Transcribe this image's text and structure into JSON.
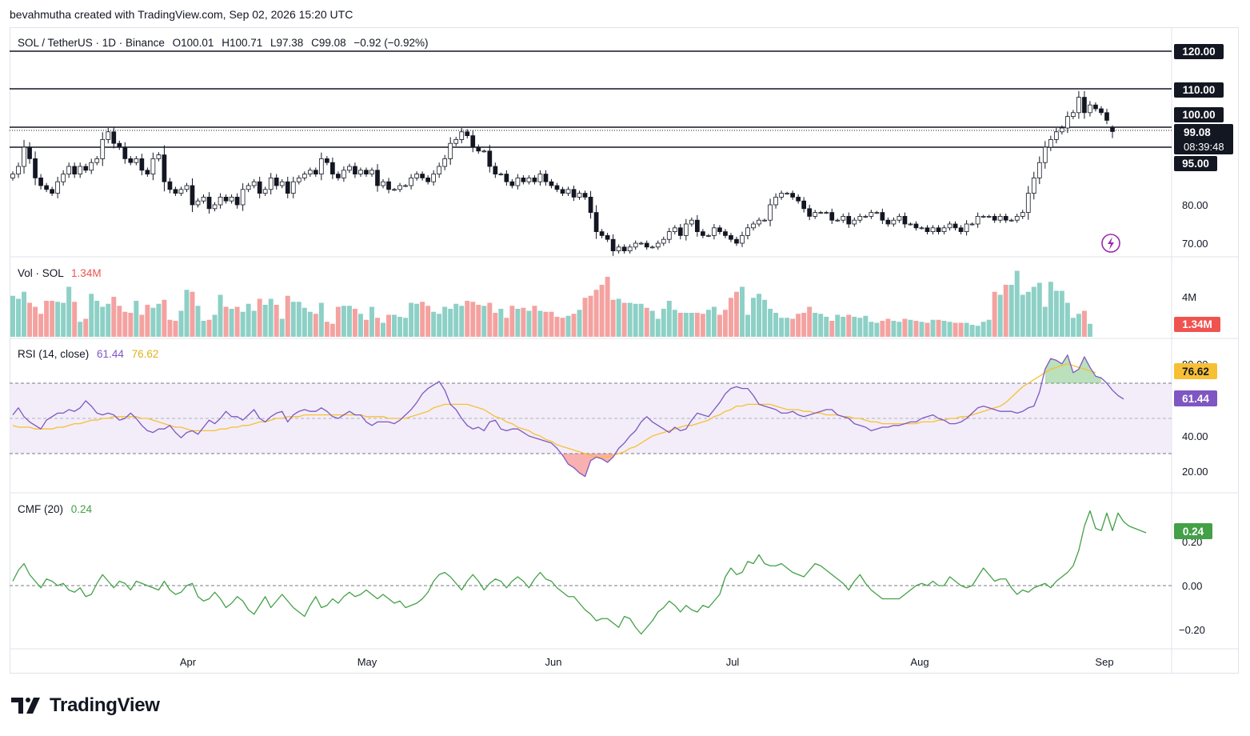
{
  "caption": "bevahmutha created with TradingView.com, Sep 02, 2026 15:20 UTC",
  "brand": "TradingView",
  "colors": {
    "up": "#26a69a",
    "down": "#ef5350",
    "vol_up": "#8dd0c6",
    "vol_down": "#f4a2a0",
    "rsi": "#7e57c2",
    "rsi_ma": "#f7c034",
    "cmf": "#43a047",
    "line": "#131722",
    "grid": "#e0e3eb",
    "rsi_band": "#ede7f6"
  },
  "price_pane": {
    "symbol_line": "SOL / TetherUS · 1D · Binance",
    "o_label": "O",
    "o": "100.01",
    "h_label": "H",
    "h": "100.71",
    "l_label": "L",
    "l": "97.38",
    "c_label": "C",
    "c": "99.08",
    "change": "−0.92 (−0.92%)",
    "countdown": "08:39:48",
    "axis_ticks": [
      "120.00",
      "110.00",
      "100.00",
      "95.00",
      "80.00",
      "70.00"
    ],
    "last_price": "99.08"
  },
  "volume_pane": {
    "title": "Vol · SOL",
    "value": "1.34M",
    "axis_tick": "4M",
    "badge": "1.34M"
  },
  "rsi_pane": {
    "title": "RSI (14, close)",
    "rsi_value": "61.44",
    "ma_value": "76.62",
    "axis_ticks": [
      "80.00",
      "40.00",
      "20.00"
    ],
    "badge_ma": "76.62",
    "badge_rsi": "61.44"
  },
  "cmf_pane": {
    "title": "CMF (20)",
    "value": "0.24",
    "axis_ticks": [
      "0.20",
      "0.00",
      "−0.20"
    ],
    "badge": "0.24"
  },
  "x_axis": [
    "Apr",
    "May",
    "Jun",
    "Jul",
    "Aug",
    "Sep"
  ],
  "chart_data": {
    "type": "candlestick",
    "title": "SOL / TetherUS · 1D · Binance",
    "x_range": [
      "2026-03-01",
      "2026-09-02"
    ],
    "price_ylim": [
      66,
      124
    ],
    "horizontal_levels": [
      120,
      110,
      100,
      95
    ],
    "last_ohlc": {
      "open": 100.01,
      "high": 100.71,
      "low": 97.38,
      "close": 99.08,
      "change": -0.92,
      "change_pct": -0.92
    },
    "closes": [
      88,
      90,
      95,
      92,
      87,
      85,
      84,
      83,
      86,
      88,
      90,
      88,
      90,
      89,
      91,
      92,
      97,
      99,
      96,
      95,
      92,
      91,
      92,
      89,
      88,
      92,
      93,
      86,
      84,
      83,
      84,
      85,
      80,
      81,
      82,
      79,
      80,
      82,
      81,
      82,
      80,
      84,
      85,
      86,
      83,
      84,
      87,
      85,
      86,
      83,
      86,
      87,
      88,
      89,
      88,
      92,
      91,
      88,
      87,
      89,
      90,
      88,
      89,
      88,
      89,
      85,
      86,
      84,
      84,
      85,
      85,
      87,
      88,
      87,
      86,
      88,
      90,
      92,
      96,
      97,
      99,
      98,
      95,
      94,
      94,
      90,
      88,
      88,
      86,
      85,
      87,
      86,
      87,
      86,
      88,
      86,
      85,
      84,
      83,
      84,
      82,
      83,
      82,
      78,
      73,
      72,
      71,
      68,
      69,
      68,
      69,
      70,
      70,
      69,
      69,
      70,
      71,
      73,
      74,
      72,
      75,
      76,
      73,
      72,
      72,
      74,
      73,
      72,
      71,
      70,
      72,
      74,
      75,
      76,
      76,
      80,
      82,
      83,
      83,
      82,
      81,
      79,
      77,
      78,
      78,
      78,
      76,
      76,
      77,
      75,
      76,
      77,
      77,
      78,
      78,
      76,
      75,
      76,
      77,
      75,
      75,
      74,
      74,
      73,
      74,
      73,
      74,
      75,
      74,
      73,
      75,
      75,
      77,
      77,
      77,
      76,
      77,
      76,
      76,
      77,
      78,
      83,
      87,
      91,
      95,
      97,
      99,
      100,
      103,
      104,
      108,
      104,
      106,
      105,
      104,
      102,
      99
    ],
    "volume": {
      "unit": "SOL",
      "last": 1.34,
      "values_m": [
        4.1,
        3.8,
        4.5,
        3.4,
        3.0,
        2.3,
        3.6,
        3.6,
        3.5,
        3.4,
        5.0,
        3.5,
        1.5,
        1.8,
        4.3,
        3.6,
        3.0,
        3.3,
        4.0,
        3.1,
        2.5,
        2.4,
        3.6,
        2.2,
        3.2,
        2.9,
        3.3,
        3.7,
        1.7,
        1.6,
        2.6,
        4.7,
        4.5,
        3.1,
        1.6,
        1.7,
        2.2,
        4.2,
        3.0,
        2.8,
        3.0,
        2.5,
        3.3,
        2.6,
        3.8,
        3.2,
        3.8,
        3.2,
        1.8,
        4.1,
        3.5,
        3.5,
        2.9,
        2.5,
        2.3,
        3.4,
        1.5,
        1.3,
        3.0,
        3.1,
        3.1,
        2.8,
        2.3,
        1.7,
        3.0,
        1.9,
        1.4,
        2.2,
        2.2,
        2.0,
        1.9,
        3.4,
        3.3,
        3.5,
        3.1,
        2.5,
        2.3,
        3.0,
        2.8,
        3.3,
        3.1,
        3.6,
        3.5,
        3.2,
        3.1,
        3.4,
        2.4,
        2.8,
        1.9,
        3.1,
        2.8,
        2.9,
        2.6,
        3.1,
        2.6,
        2.5,
        2.5,
        2.0,
        1.9,
        2.1,
        2.3,
        2.7,
        3.9,
        4.1,
        4.7,
        5.2,
        6.0,
        3.7,
        3.8,
        3.4,
        3.4,
        3.3,
        3.3,
        2.9,
        2.6,
        1.8,
        2.8,
        3.6,
        2.7,
        2.4,
        2.4,
        2.4,
        2.4,
        2.3,
        2.7,
        3.0,
        2.2,
        2.7,
        3.9,
        4.5,
        5.0,
        2.2,
        3.9,
        4.3,
        3.7,
        2.8,
        2.4,
        1.9,
        1.9,
        1.8,
        2.3,
        2.4,
        3.0,
        2.4,
        2.3,
        2.0,
        1.6,
        2.2,
        2.0,
        2.2,
        2.0,
        1.9,
        2.1,
        1.5,
        1.4,
        1.6,
        1.8,
        1.6,
        1.5,
        1.8,
        1.7,
        1.6,
        1.5,
        1.4,
        1.7,
        1.7,
        1.6,
        1.5,
        1.4,
        1.4,
        1.4,
        1.2,
        1.1,
        1.5,
        1.7,
        4.5,
        4.2,
        5.2,
        5.2,
        6.6,
        4.2,
        4.5,
        5.0,
        5.4,
        3.0,
        5.5,
        4.6,
        4.6,
        3.4,
        1.9,
        2.3,
        2.6,
        1.3
      ]
    },
    "rsi": {
      "period": 14,
      "last": 61.44,
      "ma_last": 76.62,
      "ylim": [
        10,
        90
      ],
      "bands": [
        30,
        50,
        70
      ],
      "values": [
        52,
        56,
        51,
        48,
        46,
        44,
        49,
        51,
        53,
        53,
        55,
        54,
        56,
        60,
        57,
        53,
        52,
        53,
        52,
        49,
        50,
        53,
        50,
        46,
        43,
        42,
        44,
        44,
        46,
        42,
        39,
        42,
        43,
        41,
        45,
        49,
        47,
        50,
        54,
        51,
        51,
        49,
        52,
        55,
        50,
        48,
        51,
        53,
        54,
        48,
        52,
        54,
        55,
        54,
        54,
        56,
        54,
        51,
        50,
        52,
        54,
        52,
        52,
        48,
        46,
        48,
        48,
        48,
        47,
        49,
        52,
        55,
        59,
        64,
        67,
        69,
        71,
        66,
        58,
        55,
        50,
        46,
        44,
        45,
        43,
        48,
        49,
        44,
        43,
        44,
        44,
        42,
        40,
        39,
        38,
        37,
        36,
        33,
        29,
        24,
        22,
        19,
        17,
        26,
        28,
        27,
        25,
        28,
        33,
        36,
        40,
        43,
        48,
        51,
        48,
        46,
        44,
        42,
        45,
        43,
        44,
        49,
        53,
        52,
        51,
        55,
        59,
        64,
        67,
        68,
        67,
        67,
        63,
        58,
        57,
        56,
        55,
        53,
        53,
        54,
        52,
        51,
        52,
        53,
        54,
        55,
        55,
        52,
        51,
        50,
        47,
        46,
        45,
        43,
        44,
        45,
        45,
        46,
        46,
        47,
        48,
        48,
        50,
        51,
        52,
        50,
        49,
        47,
        47,
        48,
        50,
        53,
        56,
        57,
        56,
        55,
        54,
        54,
        54,
        53,
        54,
        56,
        57,
        65,
        78,
        84,
        83,
        81,
        86,
        76,
        78,
        85,
        79,
        74,
        73,
        70,
        66,
        63,
        61
      ],
      "ma": [
        46,
        45,
        45,
        45,
        44,
        44,
        44,
        44,
        45,
        45,
        46,
        47,
        47,
        48,
        49,
        49,
        50,
        50,
        51,
        51,
        51,
        51,
        51,
        50,
        50,
        49,
        48,
        47,
        46,
        45,
        45,
        44,
        43,
        43,
        43,
        43,
        43,
        44,
        44,
        45,
        45,
        46,
        46,
        47,
        48,
        48,
        49,
        50,
        50,
        51,
        51,
        51,
        52,
        52,
        52,
        52,
        52,
        52,
        52,
        52,
        52,
        52,
        52,
        51,
        51,
        51,
        51,
        50,
        50,
        50,
        50,
        51,
        52,
        53,
        54,
        56,
        57,
        58,
        58,
        58,
        58,
        58,
        57,
        56,
        55,
        53,
        51,
        50,
        48,
        47,
        45,
        44,
        43,
        41,
        40,
        38,
        37,
        35,
        34,
        33,
        32,
        31,
        30,
        29,
        28,
        28,
        28,
        29,
        30,
        31,
        33,
        34,
        36,
        38,
        40,
        41,
        42,
        43,
        44,
        45,
        46,
        46,
        47,
        48,
        49,
        51,
        52,
        54,
        55,
        57,
        57,
        58,
        58,
        58,
        58,
        58,
        57,
        56,
        55,
        55,
        55,
        54,
        54,
        53,
        53,
        52,
        52,
        52,
        51,
        51,
        50,
        50,
        49,
        48,
        48,
        47,
        47,
        47,
        47,
        47,
        47,
        47,
        48,
        48,
        48,
        49,
        49,
        50,
        50,
        51,
        51,
        52,
        53,
        54,
        55,
        56,
        57,
        59,
        62,
        65,
        68,
        70,
        72,
        74,
        76,
        78,
        79,
        80,
        81,
        80,
        79,
        78,
        77,
        76
      ]
    },
    "cmf": {
      "period": 20,
      "last": 0.24,
      "ylim": [
        -0.27,
        0.37
      ],
      "values": [
        0.02,
        0.07,
        0.1,
        0.05,
        0.02,
        -0.01,
        0.03,
        0.02,
        0.0,
        0.01,
        -0.02,
        -0.03,
        -0.01,
        -0.05,
        -0.04,
        0.01,
        0.05,
        0.02,
        -0.01,
        0.02,
        0.01,
        -0.02,
        0.02,
        0.01,
        0.0,
        -0.01,
        -0.02,
        0.02,
        -0.02,
        -0.04,
        -0.03,
        0.0,
        0.01,
        -0.05,
        -0.07,
        -0.06,
        -0.03,
        -0.06,
        -0.1,
        -0.08,
        -0.05,
        -0.07,
        -0.11,
        -0.13,
        -0.09,
        -0.05,
        -0.1,
        -0.07,
        -0.04,
        -0.07,
        -0.1,
        -0.12,
        -0.14,
        -0.09,
        -0.05,
        -0.1,
        -0.09,
        -0.06,
        -0.08,
        -0.05,
        -0.03,
        -0.05,
        -0.04,
        -0.02,
        -0.04,
        -0.06,
        -0.04,
        -0.06,
        -0.08,
        -0.07,
        -0.1,
        -0.09,
        -0.08,
        -0.06,
        -0.03,
        0.02,
        0.05,
        0.06,
        0.04,
        0.01,
        -0.02,
        0.02,
        0.05,
        0.02,
        -0.02,
        0.01,
        0.03,
        0.02,
        -0.01,
        0.02,
        0.04,
        0.02,
        -0.01,
        0.03,
        0.06,
        0.03,
        0.02,
        -0.01,
        -0.03,
        -0.05,
        -0.05,
        -0.08,
        -0.11,
        -0.13,
        -0.16,
        -0.15,
        -0.15,
        -0.17,
        -0.19,
        -0.14,
        -0.15,
        -0.19,
        -0.22,
        -0.19,
        -0.16,
        -0.12,
        -0.1,
        -0.07,
        -0.09,
        -0.12,
        -0.09,
        -0.11,
        -0.12,
        -0.09,
        -0.1,
        -0.07,
        -0.04,
        0.04,
        0.08,
        0.05,
        0.06,
        0.11,
        0.1,
        0.14,
        0.1,
        0.09,
        0.09,
        0.1,
        0.08,
        0.06,
        0.05,
        0.04,
        0.07,
        0.1,
        0.09,
        0.07,
        0.05,
        0.03,
        0.01,
        -0.02,
        0.02,
        0.05,
        0.01,
        -0.02,
        -0.04,
        -0.06,
        -0.06,
        -0.06,
        -0.06,
        -0.04,
        -0.02,
        0.0,
        0.01,
        0.0,
        0.02,
        0.0,
        0.0,
        0.04,
        0.02,
        0.0,
        -0.01,
        0.0,
        0.04,
        0.08,
        0.05,
        0.02,
        0.03,
        0.03,
        -0.01,
        -0.04,
        -0.02,
        -0.03,
        -0.01,
        0.0,
        0.01,
        -0.01,
        0.02,
        0.04,
        0.06,
        0.09,
        0.16,
        0.27,
        0.34,
        0.26,
        0.25,
        0.33,
        0.25,
        0.33,
        0.29,
        0.27,
        0.26,
        0.25,
        0.24
      ]
    }
  }
}
